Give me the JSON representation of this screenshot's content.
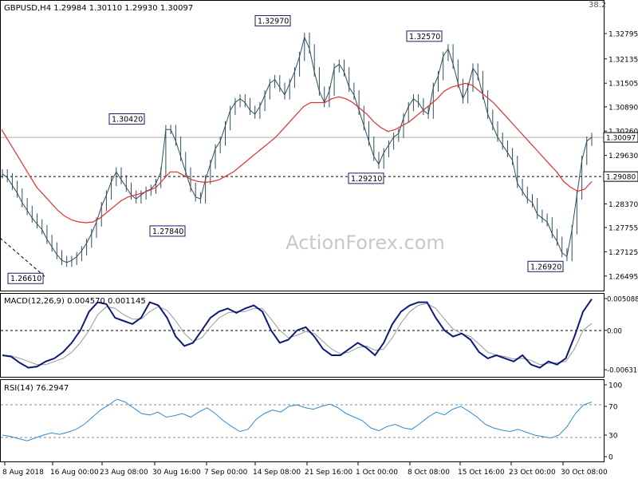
{
  "chart_data": [
    {
      "type": "line",
      "panel": "price",
      "title": "GBPUSD,H4  1.29984 1.30110 1.29930 1.30097",
      "watermark": "ActionForex.com",
      "corner_label": "38.2",
      "ylim": [
        1.262,
        1.335
      ],
      "y_ticks": [
        "1.32795",
        "1.32135",
        "1.31505",
        "1.30890",
        "1.30260",
        "1.29630",
        "1.28370",
        "1.27755",
        "1.27125",
        "1.26495"
      ],
      "last_price_tag": "1.30097",
      "last_price": 1.30097,
      "level_line": {
        "label": "1.29080",
        "value": 1.2908
      },
      "x_ticks": [
        "8 Aug 2018",
        "16 Aug 00:00",
        "23 Aug 08:00",
        "30 Aug 16:00",
        "7 Sep 00:00",
        "14 Sep 08:00",
        "21 Sep 16:00",
        "1 Oct 00:00",
        "8 Oct 08:00",
        "15 Oct 16:00",
        "23 Oct 00:00",
        "30 Oct 08:00"
      ],
      "annotations": [
        {
          "label": "1.26610",
          "value": 1.2661
        },
        {
          "label": "1.30420",
          "value": 1.3042
        },
        {
          "label": "1.27840",
          "value": 1.2784
        },
        {
          "label": "1.32970",
          "value": 1.3297
        },
        {
          "label": "1.29210",
          "value": 1.2921
        },
        {
          "label": "1.32570",
          "value": 1.3257
        },
        {
          "label": "1.26920",
          "value": 1.2692
        }
      ],
      "series": [
        {
          "values": [
            1.2915,
            1.2905,
            1.2885,
            1.2865,
            1.284,
            1.282,
            1.28,
            1.2785,
            1.277,
            1.2745,
            1.2725,
            1.2705,
            1.269,
            1.2685,
            1.269,
            1.27,
            1.2715,
            1.2735,
            1.276,
            1.279,
            1.283,
            1.286,
            1.2895,
            1.292,
            1.29,
            1.288,
            1.286,
            1.285,
            1.286,
            1.287,
            1.2875,
            1.289,
            1.292,
            1.303,
            1.303,
            1.3,
            1.296,
            1.292,
            1.288,
            1.2855,
            1.285,
            1.29,
            1.294,
            1.298,
            1.3,
            1.304,
            1.308,
            1.31,
            1.311,
            1.31,
            1.308,
            1.307,
            1.309,
            1.312,
            1.315,
            1.316,
            1.314,
            1.312,
            1.315,
            1.318,
            1.322,
            1.327,
            1.324,
            1.318,
            1.313,
            1.31,
            1.313,
            1.319,
            1.32,
            1.318,
            1.314,
            1.312,
            1.308,
            1.304,
            1.3,
            1.296,
            1.294,
            1.297,
            1.299,
            1.301,
            1.302,
            1.306,
            1.309,
            1.311,
            1.31,
            1.308,
            1.307,
            1.314,
            1.317,
            1.322,
            1.324,
            1.32,
            1.315,
            1.311,
            1.314,
            1.319,
            1.317,
            1.312,
            1.307,
            1.304,
            1.301,
            1.299,
            1.297,
            1.295,
            1.289,
            1.287,
            1.285,
            1.284,
            1.281,
            1.28,
            1.279,
            1.276,
            1.274,
            1.271,
            1.27,
            1.277,
            1.286,
            1.295,
            1.3,
            1.301
          ]
        },
        {
          "name": "MA",
          "values": [
            1.303,
            1.3,
            1.297,
            1.294,
            1.291,
            1.288,
            1.286,
            1.284,
            1.282,
            1.2805,
            1.2795,
            1.279,
            1.2788,
            1.279,
            1.28,
            1.2815,
            1.283,
            1.2845,
            1.2855,
            1.286,
            1.2865,
            1.2872,
            1.288,
            1.29,
            1.292,
            1.292,
            1.291,
            1.29,
            1.2895,
            1.2893,
            1.2895,
            1.29,
            1.291,
            1.292,
            1.2935,
            1.295,
            1.2965,
            1.298,
            1.2995,
            1.301,
            1.303,
            1.305,
            1.307,
            1.309,
            1.31,
            1.31,
            1.31,
            1.311,
            1.3115,
            1.311,
            1.31,
            1.3085,
            1.307,
            1.305,
            1.3035,
            1.3025,
            1.303,
            1.304,
            1.305,
            1.3065,
            1.308,
            1.3095,
            1.311,
            1.313,
            1.314,
            1.3145,
            1.315,
            1.3145,
            1.313,
            1.3115,
            1.31,
            1.308,
            1.306,
            1.304,
            1.302,
            1.3,
            1.298,
            1.296,
            1.294,
            1.292,
            1.2895,
            1.288,
            1.287,
            1.2875,
            1.2895
          ]
        }
      ]
    },
    {
      "type": "line",
      "panel": "macd",
      "title": "MACD(12,26,9) 0.004570 0.001145",
      "ylim": [
        -0.0072,
        0.0056
      ],
      "y_ticks": [
        "0.005088",
        "0.00",
        "-0.006316"
      ],
      "series": [
        {
          "name": "MACD",
          "values": [
            -0.004,
            -0.0042,
            -0.0052,
            -0.006,
            -0.0058,
            -0.005,
            -0.0045,
            -0.0035,
            -0.002,
            0.0,
            0.003,
            0.0045,
            0.0042,
            0.002,
            0.0015,
            0.001,
            0.002,
            0.0045,
            0.004,
            0.002,
            -0.001,
            -0.0025,
            -0.002,
            0.0,
            0.002,
            0.003,
            0.0035,
            0.0028,
            0.0035,
            0.004,
            0.003,
            0.0,
            -0.002,
            -0.0015,
            0.0,
            0.0005,
            -0.001,
            -0.003,
            -0.004,
            -0.004,
            -0.003,
            -0.002,
            -0.0028,
            -0.004,
            -0.002,
            0.001,
            0.003,
            0.004,
            0.0045,
            0.0045,
            0.002,
            0.0,
            -0.001,
            -0.0005,
            -0.0015,
            -0.0035,
            -0.0045,
            -0.004,
            -0.0045,
            -0.005,
            -0.004,
            -0.0055,
            -0.006,
            -0.005,
            -0.0055,
            -0.0045,
            -0.001,
            0.003,
            0.005
          ]
        },
        {
          "name": "Signal",
          "values": [
            -0.004,
            -0.0041,
            -0.0045,
            -0.005,
            -0.0055,
            -0.0055,
            -0.005,
            -0.0045,
            -0.0035,
            -0.002,
            0.0,
            0.0025,
            0.0038,
            0.0035,
            0.0025,
            0.0018,
            0.0018,
            0.003,
            0.0038,
            0.0032,
            0.0015,
            -0.0005,
            -0.0018,
            -0.0012,
            0.0005,
            0.002,
            0.0028,
            0.003,
            0.003,
            0.0035,
            0.0035,
            0.0018,
            0.0,
            -0.0012,
            -0.0008,
            -0.0002,
            -0.0005,
            -0.0018,
            -0.003,
            -0.0038,
            -0.0035,
            -0.0028,
            -0.0025,
            -0.0032,
            -0.003,
            -0.0012,
            0.0012,
            0.003,
            0.004,
            0.0043,
            0.0035,
            0.0018,
            0.0002,
            -0.0005,
            -0.001,
            -0.0022,
            -0.0035,
            -0.004,
            -0.0042,
            -0.0046,
            -0.0045,
            -0.0048,
            -0.0055,
            -0.0053,
            -0.0052,
            -0.005,
            -0.003,
            0.0,
            0.0011
          ]
        }
      ]
    },
    {
      "type": "line",
      "panel": "rsi",
      "title": "RSI(14) 76.2947",
      "ylim": [
        0,
        100
      ],
      "y_ticks": [
        "100",
        "70",
        "30",
        "0"
      ],
      "levels": [
        70,
        30
      ],
      "series": [
        {
          "name": "RSI",
          "values": [
            30,
            28,
            25,
            22,
            26,
            30,
            33,
            31,
            34,
            38,
            45,
            55,
            65,
            72,
            80,
            76,
            68,
            60,
            58,
            62,
            55,
            57,
            60,
            55,
            62,
            68,
            60,
            50,
            42,
            35,
            38,
            52,
            60,
            65,
            62,
            70,
            72,
            68,
            66,
            70,
            73,
            68,
            60,
            55,
            50,
            40,
            36,
            42,
            45,
            40,
            38,
            46,
            55,
            62,
            58,
            66,
            70,
            63,
            55,
            45,
            40,
            37,
            35,
            38,
            34,
            30,
            28,
            26,
            30,
            42,
            60,
            72,
            76
          ]
        }
      ]
    }
  ]
}
